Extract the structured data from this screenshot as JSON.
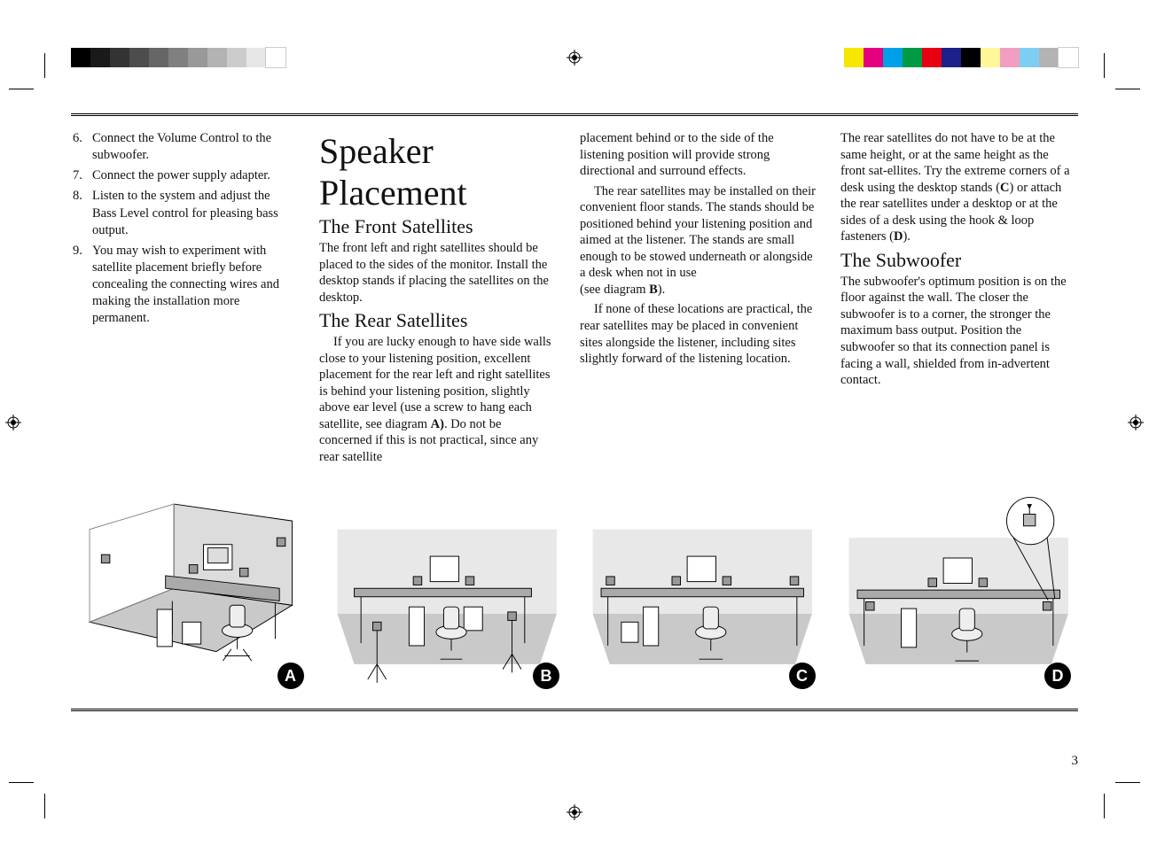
{
  "crop_marks_color": "#000000",
  "swatches_left": [
    "#000000",
    "#1a1a1a",
    "#333333",
    "#4d4d4d",
    "#666666",
    "#808080",
    "#999999",
    "#b3b3b3",
    "#cccccc",
    "#e6e6e6",
    "#ffffff"
  ],
  "swatches_right": [
    "#f7e600",
    "#e4007f",
    "#00a0e9",
    "#009944",
    "#e60012",
    "#1d2088",
    "#000000",
    "#fff799",
    "#f19ec2",
    "#7ecef4",
    "#b3b3b3",
    "#ffffff"
  ],
  "title": "Speaker Placement",
  "steps": [
    {
      "n": "6.",
      "t": "Connect the Volume Control to the subwoofer."
    },
    {
      "n": "7.",
      "t": "Connect the power supply adapter."
    },
    {
      "n": "8.",
      "t": "Listen to the system and adjust the Bass Level control for pleasing bass output."
    },
    {
      "n": "9.",
      "t": "You may wish to experiment with satellite placement briefly before concealing the connecting wires and making the installation more permanent."
    }
  ],
  "col2": {
    "h_front": "The Front Satellites",
    "p_front": "The front left and right satellites should be placed to the sides of the monitor. Install the desktop stands if placing the satellites on the desktop.",
    "h_rear": "The Rear Satellites",
    "p_rear_a": "If you are lucky enough to have side walls close to your listening position, excellent placement for the rear left and right satellites is behind your listening position, slightly above ear level (use a screw to hang each satellite, see diagram ",
    "p_rear_a_bold": "A)",
    "p_rear_a_tail": ". Do not be concerned if this is not practical, since any rear satellite"
  },
  "col3": {
    "p1": "placement behind or to the side of the listening position will provide strong directional and surround effects.",
    "p2a": "The rear satellites may be installed on their convenient floor stands. The stands should be positioned behind your listening position and aimed at the listener. The stands are small enough to be stowed underneath or alongside a desk when not in use",
    "p2b_pre": "(see diagram ",
    "p2b_bold": "B",
    "p2b_post": ").",
    "p3": "If none of these locations are practical, the rear satellites may be placed in convenient sites alongside the listener, including sites slightly forward of the listening location."
  },
  "col4": {
    "p1a": "The rear satellites do not have to be at the same height, or at the same height as the front sat-ellites. Try the extreme corners of a desk using the desktop stands (",
    "p1b": "C",
    "p1c": ") or attach the rear satellites under a desktop or at the sides of a desk using the hook & loop fasteners (",
    "p1d": "D",
    "p1e": ").",
    "h_sub": "The Subwoofer",
    "p2": "The subwoofer's optimum position is on the floor against the wall. The closer the subwoofer is to a corner, the stronger the maximum bass output. Position the subwoofer so that its connection panel is facing a wall, shielded from in-advertent contact."
  },
  "diagrams": [
    {
      "label": "A"
    },
    {
      "label": "B"
    },
    {
      "label": "C"
    },
    {
      "label": "D"
    }
  ],
  "page_number": "3",
  "diagram_colors": {
    "floor": "#c9c9c9",
    "wall": "#e8e8e8",
    "line": "#000000",
    "fill": "#ffffff"
  }
}
